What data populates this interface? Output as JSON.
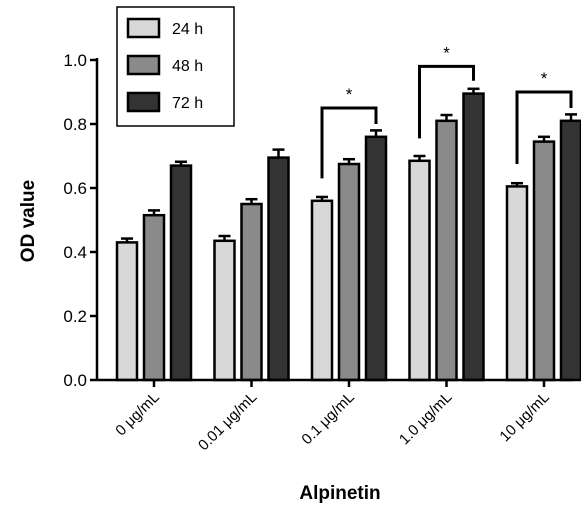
{
  "chart_data": {
    "type": "bar",
    "categories": [
      "0 μg/mL",
      "0.01 μg/mL",
      "0.1 μg/mL",
      "1.0 μg/mL",
      "10 μg/mL"
    ],
    "series": [
      {
        "name": "24 h",
        "values": [
          0.43,
          0.435,
          0.56,
          0.685,
          0.605
        ],
        "errors": [
          0.012,
          0.015,
          0.012,
          0.015,
          0.01
        ],
        "color": "#d8d8d8"
      },
      {
        "name": "48 h",
        "values": [
          0.515,
          0.55,
          0.675,
          0.81,
          0.745
        ],
        "errors": [
          0.015,
          0.015,
          0.015,
          0.018,
          0.015
        ],
        "color": "#8a8a8a"
      },
      {
        "name": "72 h",
        "values": [
          0.67,
          0.695,
          0.76,
          0.895,
          0.81
        ],
        "errors": [
          0.012,
          0.025,
          0.02,
          0.015,
          0.02
        ],
        "color": "#333333"
      }
    ],
    "title": "",
    "xlabel": "Alpinetin",
    "ylabel": "OD value",
    "ylim": [
      0,
      1.0
    ],
    "yticks": [
      "0.0",
      "0.2",
      "0.4",
      "0.6",
      "0.8",
      "1.0"
    ],
    "legend_position": "top-left",
    "significance": [
      {
        "category": "0.1 μg/mL",
        "label": "*"
      },
      {
        "category": "1.0 μg/mL",
        "label": "*"
      },
      {
        "category": "10 μg/mL",
        "label": "*"
      }
    ]
  }
}
